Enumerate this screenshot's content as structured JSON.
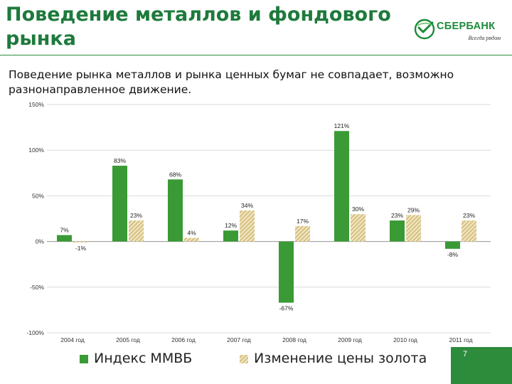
{
  "header": {
    "title": "Поведение металлов и фондового рынка",
    "subtitle": "Поведение рынка металлов и рынка ценных бумаг не совпадает, возможно разнонаправленное движение."
  },
  "logo": {
    "brand": "СБЕРБАНК",
    "slogan": "Всегда рядом",
    "color": "#1c8a3a"
  },
  "page_number": "7",
  "chart_data": {
    "type": "bar",
    "categories": [
      "2004 год",
      "2005 год",
      "2006 год",
      "2007 год",
      "2008 год",
      "2009 год",
      "2010 год",
      "2011 год"
    ],
    "series": [
      {
        "name": "Индекс ММВБ",
        "values": [
          7,
          83,
          68,
          12,
          -67,
          121,
          23,
          -8
        ],
        "labels": [
          "7%",
          "83%",
          "68%",
          "12%",
          "-67%",
          "121%",
          "23%",
          "-8%"
        ],
        "color": "#3a9a35",
        "pattern": "solid"
      },
      {
        "name": "Изменение цены золота",
        "values": [
          -1,
          23,
          4,
          34,
          17,
          30,
          29,
          23
        ],
        "labels": [
          "-1%",
          "23%",
          "4%",
          "34%",
          "17%",
          "30%",
          "29%",
          "23%"
        ],
        "color": "#d8c690",
        "pattern": "hatched"
      }
    ],
    "ylim": [
      -100,
      150
    ],
    "yticks": [
      150,
      100,
      50,
      0,
      -50,
      -100
    ],
    "ytick_labels": [
      "150%",
      "100%",
      "50%",
      "0%",
      "-50%",
      "-100%"
    ],
    "grid": true,
    "legend": "bottom",
    "xlabel": "",
    "ylabel": ""
  }
}
